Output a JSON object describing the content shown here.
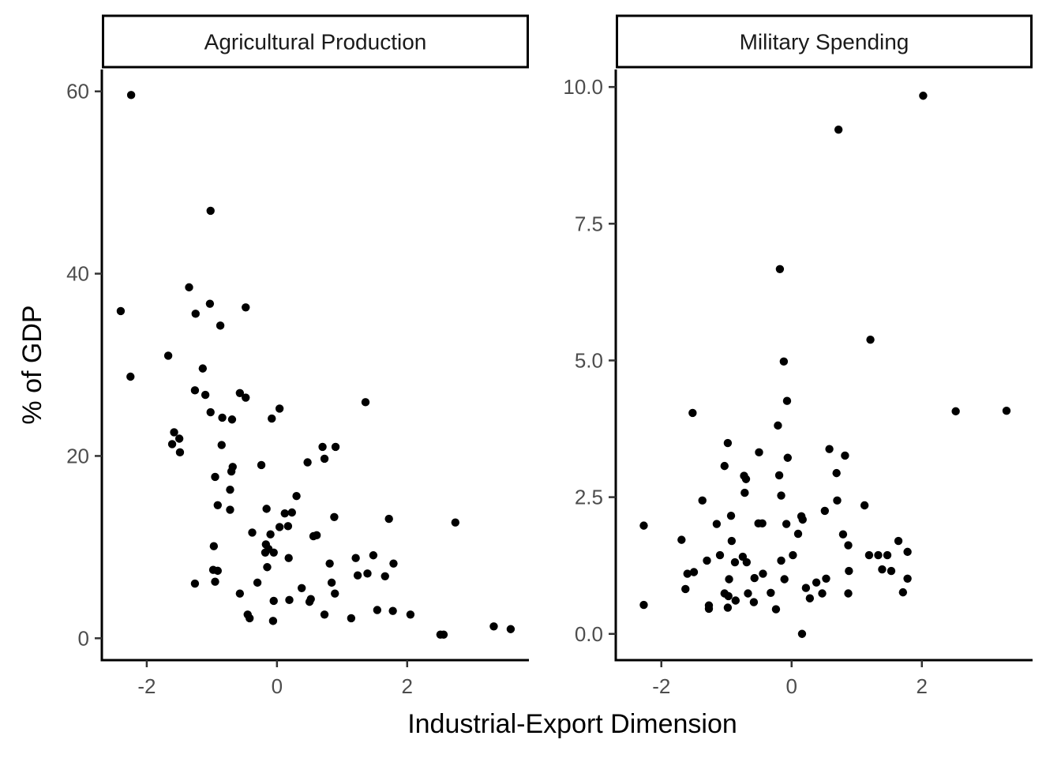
{
  "chart_data": [
    {
      "type": "scatter",
      "title": "Agricultural Production",
      "xlabel": "Industrial-Export Dimension",
      "ylabel": "% of GDP",
      "xlim": [
        -2.69,
        3.87
      ],
      "ylim": [
        -2.4,
        62.4
      ],
      "xticks": [
        -2,
        0,
        2
      ],
      "yticks": [
        0,
        20,
        40,
        60
      ],
      "xtick_labels": [
        "-2",
        "0",
        "2"
      ],
      "ytick_labels": [
        "0",
        "20",
        "40",
        "60"
      ],
      "grid": false,
      "points": [
        [
          -2.24,
          59.6
        ],
        [
          -1.02,
          46.9
        ],
        [
          -2.4,
          35.9
        ],
        [
          -2.25,
          28.7
        ],
        [
          -1.35,
          38.5
        ],
        [
          -1.03,
          36.7
        ],
        [
          -0.48,
          36.3
        ],
        [
          -1.25,
          35.6
        ],
        [
          -0.87,
          34.3
        ],
        [
          -1.67,
          31.0
        ],
        [
          -1.14,
          29.6
        ],
        [
          -1.26,
          27.2
        ],
        [
          -1.1,
          26.7
        ],
        [
          -0.57,
          26.9
        ],
        [
          -0.48,
          26.4
        ],
        [
          1.36,
          25.9
        ],
        [
          0.04,
          25.2
        ],
        [
          -1.02,
          24.8
        ],
        [
          -0.84,
          24.2
        ],
        [
          -0.69,
          24.0
        ],
        [
          -0.08,
          24.1
        ],
        [
          -1.58,
          22.6
        ],
        [
          -1.5,
          21.9
        ],
        [
          -1.61,
          21.3
        ],
        [
          -0.85,
          21.2
        ],
        [
          -1.49,
          20.4
        ],
        [
          0.7,
          21.0
        ],
        [
          0.9,
          21.0
        ],
        [
          0.73,
          19.7
        ],
        [
          0.47,
          19.3
        ],
        [
          -0.24,
          19.0
        ],
        [
          -0.68,
          18.8
        ],
        [
          -0.7,
          18.3
        ],
        [
          -0.95,
          17.7
        ],
        [
          -0.72,
          16.3
        ],
        [
          0.3,
          15.6
        ],
        [
          -0.91,
          14.6
        ],
        [
          -0.72,
          14.1
        ],
        [
          -0.16,
          14.2
        ],
        [
          0.12,
          13.7
        ],
        [
          0.23,
          13.8
        ],
        [
          0.88,
          13.3
        ],
        [
          1.72,
          13.1
        ],
        [
          2.74,
          12.7
        ],
        [
          0.04,
          12.2
        ],
        [
          0.17,
          12.3
        ],
        [
          -0.1,
          11.4
        ],
        [
          -0.38,
          11.6
        ],
        [
          0.56,
          11.2
        ],
        [
          0.61,
          11.3
        ],
        [
          -0.17,
          10.3
        ],
        [
          -0.13,
          9.8
        ],
        [
          -0.97,
          10.1
        ],
        [
          -0.18,
          9.4
        ],
        [
          -0.05,
          9.4
        ],
        [
          1.21,
          8.8
        ],
        [
          0.18,
          8.8
        ],
        [
          1.48,
          9.1
        ],
        [
          0.81,
          8.2
        ],
        [
          1.79,
          8.2
        ],
        [
          -0.15,
          7.8
        ],
        [
          -0.98,
          7.5
        ],
        [
          -0.91,
          7.4
        ],
        [
          1.39,
          7.1
        ],
        [
          1.24,
          6.9
        ],
        [
          1.66,
          6.8
        ],
        [
          -0.95,
          6.2
        ],
        [
          -1.26,
          6.0
        ],
        [
          -0.3,
          6.1
        ],
        [
          0.84,
          6.1
        ],
        [
          0.38,
          5.5
        ],
        [
          -0.57,
          4.9
        ],
        [
          0.89,
          4.9
        ],
        [
          0.52,
          4.3
        ],
        [
          0.5,
          4.0
        ],
        [
          0.19,
          4.2
        ],
        [
          -0.05,
          4.1
        ],
        [
          1.54,
          3.1
        ],
        [
          1.78,
          3.0
        ],
        [
          2.05,
          2.6
        ],
        [
          0.73,
          2.6
        ],
        [
          -0.45,
          2.6
        ],
        [
          -0.42,
          2.2
        ],
        [
          1.14,
          2.2
        ],
        [
          -0.06,
          1.9
        ],
        [
          3.33,
          1.3
        ],
        [
          3.59,
          1.0
        ],
        [
          2.51,
          0.4
        ],
        [
          2.56,
          0.4
        ]
      ]
    },
    {
      "type": "scatter",
      "title": "Military Spending",
      "xlabel": "Industrial-Export Dimension",
      "ylabel": "% of GDP",
      "xlim": [
        -2.7,
        3.7
      ],
      "ylim": [
        -0.48,
        10.32
      ],
      "xticks": [
        -2,
        0,
        2
      ],
      "yticks": [
        0,
        2.5,
        5,
        7.5,
        10
      ],
      "xtick_labels": [
        "-2",
        "0",
        "2"
      ],
      "ytick_labels": [
        "0.0",
        "2.5",
        "5.0",
        "7.5",
        "10.0"
      ],
      "grid": false,
      "points": [
        [
          2.02,
          9.84
        ],
        [
          0.72,
          9.22
        ],
        [
          -0.18,
          6.67
        ],
        [
          1.21,
          5.38
        ],
        [
          -0.12,
          4.98
        ],
        [
          -0.07,
          4.26
        ],
        [
          -1.52,
          4.04
        ],
        [
          2.52,
          4.07
        ],
        [
          3.3,
          4.08
        ],
        [
          -0.21,
          3.81
        ],
        [
          -0.98,
          3.49
        ],
        [
          -0.5,
          3.32
        ],
        [
          0.58,
          3.38
        ],
        [
          0.82,
          3.26
        ],
        [
          -0.06,
          3.22
        ],
        [
          -1.03,
          3.07
        ],
        [
          0.69,
          2.94
        ],
        [
          -0.19,
          2.9
        ],
        [
          -0.73,
          2.89
        ],
        [
          -0.7,
          2.83
        ],
        [
          -0.72,
          2.58
        ],
        [
          -0.16,
          2.53
        ],
        [
          -1.37,
          2.44
        ],
        [
          0.7,
          2.44
        ],
        [
          1.12,
          2.35
        ],
        [
          0.51,
          2.25
        ],
        [
          -0.93,
          2.16
        ],
        [
          0.15,
          2.15
        ],
        [
          0.17,
          2.09
        ],
        [
          -1.15,
          2.01
        ],
        [
          -0.51,
          2.02
        ],
        [
          -0.45,
          2.02
        ],
        [
          -0.08,
          2.01
        ],
        [
          -2.27,
          1.98
        ],
        [
          0.1,
          1.83
        ],
        [
          0.79,
          1.82
        ],
        [
          -1.69,
          1.72
        ],
        [
          -0.92,
          1.7
        ],
        [
          1.64,
          1.7
        ],
        [
          0.87,
          1.62
        ],
        [
          1.78,
          1.5
        ],
        [
          1.19,
          1.44
        ],
        [
          1.33,
          1.44
        ],
        [
          1.47,
          1.44
        ],
        [
          -1.1,
          1.44
        ],
        [
          0.02,
          1.44
        ],
        [
          -0.75,
          1.41
        ],
        [
          -1.3,
          1.34
        ],
        [
          -0.87,
          1.31
        ],
        [
          -0.69,
          1.31
        ],
        [
          -0.16,
          1.34
        ],
        [
          1.39,
          1.18
        ],
        [
          1.53,
          1.15
        ],
        [
          0.88,
          1.15
        ],
        [
          -1.5,
          1.13
        ],
        [
          -1.6,
          1.1
        ],
        [
          -0.44,
          1.1
        ],
        [
          -0.57,
          1.02
        ],
        [
          -0.96,
          1.0
        ],
        [
          -0.11,
          1.0
        ],
        [
          0.53,
          1.01
        ],
        [
          1.78,
          1.01
        ],
        [
          0.38,
          0.94
        ],
        [
          0.22,
          0.84
        ],
        [
          -1.63,
          0.82
        ],
        [
          1.71,
          0.76
        ],
        [
          0.87,
          0.74
        ],
        [
          -1.03,
          0.74
        ],
        [
          -0.67,
          0.74
        ],
        [
          -0.32,
          0.75
        ],
        [
          0.47,
          0.74
        ],
        [
          -0.97,
          0.69
        ],
        [
          0.28,
          0.65
        ],
        [
          -0.86,
          0.61
        ],
        [
          -0.58,
          0.58
        ],
        [
          -2.27,
          0.53
        ],
        [
          -1.27,
          0.52
        ],
        [
          -1.27,
          0.46
        ],
        [
          -0.98,
          0.48
        ],
        [
          -0.24,
          0.45
        ],
        [
          0.16,
          0.0
        ]
      ]
    }
  ],
  "labels": {
    "xlabel": "Industrial-Export Dimension",
    "ylabel": "% of GDP"
  }
}
